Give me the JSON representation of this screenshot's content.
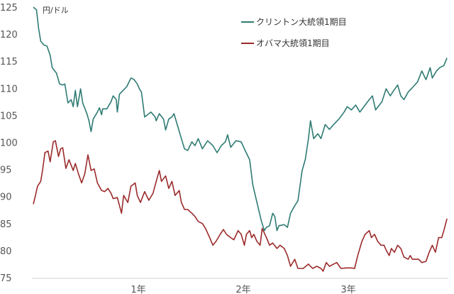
{
  "chart_data": {
    "type": "line",
    "title": "",
    "unit_label": "円/ドル",
    "ylim": [
      75,
      125
    ],
    "yticks": [
      75,
      80,
      85,
      90,
      95,
      100,
      105,
      110,
      115,
      120,
      125
    ],
    "xlim": [
      0,
      3.95
    ],
    "xticks": [
      {
        "value": 1,
        "label": "1年"
      },
      {
        "value": 2,
        "label": "2年"
      },
      {
        "value": 3,
        "label": "3年"
      }
    ],
    "grid": false,
    "legend_placement": "top-center",
    "series": [
      {
        "name": "クリントン大統領1期目",
        "color": "#2e7b73",
        "x": [
          0,
          0.03,
          0.05,
          0.07,
          0.1,
          0.13,
          0.16,
          0.18,
          0.22,
          0.25,
          0.28,
          0.3,
          0.33,
          0.36,
          0.38,
          0.4,
          0.42,
          0.45,
          0.47,
          0.51,
          0.53,
          0.55,
          0.57,
          0.61,
          0.63,
          0.65,
          0.66,
          0.7,
          0.74,
          0.76,
          0.79,
          0.8,
          0.82,
          0.85,
          0.89,
          0.93,
          0.96,
          0.99,
          1.01,
          1.03,
          1.06,
          1.1,
          1.12,
          1.16,
          1.17,
          1.2,
          1.24,
          1.26,
          1.29,
          1.32,
          1.34,
          1.37,
          1.41,
          1.44,
          1.47,
          1.51,
          1.54,
          1.57,
          1.61,
          1.66,
          1.71,
          1.75,
          1.79,
          1.83,
          1.85,
          1.88,
          1.93,
          1.98,
          2.01,
          2.06,
          2.09,
          2.13,
          2.17,
          2.2,
          2.22,
          2.25,
          2.28,
          2.3,
          2.32,
          2.34,
          2.39,
          2.42,
          2.45,
          2.49,
          2.52,
          2.56,
          2.59,
          2.62,
          2.64,
          2.67,
          2.71,
          2.74,
          2.78,
          2.82,
          2.86,
          2.91,
          2.96,
          2.99,
          3.03,
          3.07,
          3.11,
          3.16,
          3.2,
          3.23,
          3.26,
          3.32,
          3.36,
          3.4,
          3.43,
          3.47,
          3.5,
          3.53,
          3.57,
          3.6,
          3.66,
          3.7,
          3.74,
          3.78,
          3.8,
          3.84,
          3.87,
          3.91,
          3.94
        ],
        "y": [
          125.0,
          124.5,
          121.1,
          118.7,
          118.0,
          117.8,
          116.1,
          113.8,
          112.8,
          110.8,
          110.6,
          110.8,
          107.3,
          107.9,
          106.6,
          109.6,
          106.6,
          109.9,
          107.3,
          105.3,
          104.0,
          102.0,
          104.3,
          105.6,
          106.4,
          105.1,
          106.2,
          106.2,
          107.5,
          108.6,
          107.9,
          105.6,
          108.9,
          109.5,
          110.3,
          111.9,
          111.6,
          110.8,
          109.9,
          109.3,
          104.7,
          105.3,
          105.6,
          104.7,
          104.0,
          105.3,
          104.3,
          102.3,
          104.3,
          104.7,
          105.3,
          103.3,
          100.7,
          98.8,
          98.5,
          100.1,
          99.4,
          100.7,
          98.8,
          100.3,
          99.4,
          98.1,
          99.4,
          100.1,
          101.4,
          99.1,
          100.3,
          100.1,
          98.8,
          96.8,
          92.2,
          88.9,
          85.6,
          83.7,
          84.3,
          84.6,
          86.9,
          86.3,
          83.7,
          84.6,
          84.8,
          84.3,
          86.9,
          88.3,
          89.2,
          94.8,
          96.8,
          100.7,
          104.0,
          100.7,
          101.6,
          100.7,
          103.3,
          102.4,
          103.3,
          104.3,
          105.6,
          106.6,
          106.0,
          106.9,
          105.6,
          106.9,
          107.9,
          108.6,
          106.0,
          107.5,
          109.9,
          108.6,
          109.5,
          110.6,
          108.6,
          107.9,
          109.3,
          109.9,
          111.2,
          113.2,
          111.6,
          113.8,
          111.9,
          113.2,
          113.8,
          114.2,
          115.6
        ]
      },
      {
        "name": "オバマ大統領1期目",
        "color": "#9b2a2a",
        "x": [
          0,
          0.02,
          0.04,
          0.07,
          0.09,
          0.11,
          0.14,
          0.16,
          0.19,
          0.21,
          0.24,
          0.26,
          0.28,
          0.31,
          0.34,
          0.38,
          0.4,
          0.43,
          0.46,
          0.49,
          0.52,
          0.55,
          0.58,
          0.61,
          0.65,
          0.68,
          0.71,
          0.74,
          0.76,
          0.8,
          0.84,
          0.86,
          0.9,
          0.93,
          0.97,
          0.99,
          1.02,
          1.06,
          1.1,
          1.14,
          1.17,
          1.2,
          1.22,
          1.26,
          1.29,
          1.32,
          1.35,
          1.39,
          1.41,
          1.44,
          1.47,
          1.51,
          1.54,
          1.57,
          1.61,
          1.64,
          1.68,
          1.71,
          1.74,
          1.78,
          1.81,
          1.84,
          1.88,
          1.91,
          1.95,
          1.98,
          2.01,
          2.03,
          2.06,
          2.08,
          2.1,
          2.13,
          2.16,
          2.18,
          2.22,
          2.25,
          2.28,
          2.32,
          2.35,
          2.39,
          2.42,
          2.45,
          2.49,
          2.52,
          2.57,
          2.62,
          2.66,
          2.7,
          2.74,
          2.76,
          2.79,
          2.82,
          2.86,
          2.89,
          2.93,
          2.98,
          3.03,
          3.06,
          3.09,
          3.13,
          3.16,
          3.2,
          3.22,
          3.25,
          3.28,
          3.31,
          3.34,
          3.36,
          3.39,
          3.41,
          3.44,
          3.47,
          3.5,
          3.53,
          3.57,
          3.59,
          3.61,
          3.67,
          3.7,
          3.74,
          3.77,
          3.8,
          3.83,
          3.86,
          3.89,
          3.91,
          3.94
        ],
        "y": [
          88.6,
          90.2,
          91.9,
          92.8,
          95.1,
          98.1,
          98.4,
          96.4,
          100.1,
          100.3,
          97.4,
          98.8,
          99.0,
          95.2,
          96.8,
          94.8,
          96.1,
          94.2,
          92.5,
          94.2,
          97.7,
          94.8,
          95.1,
          92.5,
          91.1,
          90.9,
          91.5,
          90.6,
          89.6,
          89.8,
          86.9,
          90.2,
          88.9,
          91.9,
          92.5,
          90.2,
          88.9,
          90.9,
          89.3,
          90.6,
          92.8,
          94.8,
          92.8,
          93.8,
          91.5,
          92.8,
          90.2,
          91.1,
          88.9,
          87.6,
          87.6,
          86.9,
          86.3,
          85.4,
          85.0,
          84.1,
          82.4,
          81.0,
          81.7,
          83.0,
          83.9,
          83.0,
          82.4,
          82.0,
          83.7,
          83.0,
          81.0,
          83.0,
          83.7,
          82.4,
          83.0,
          81.7,
          81.0,
          84.1,
          82.4,
          81.0,
          81.4,
          80.4,
          81.0,
          80.4,
          79.1,
          77.1,
          78.4,
          76.7,
          76.7,
          77.5,
          76.7,
          77.1,
          76.7,
          76.2,
          77.8,
          77.1,
          77.5,
          77.8,
          76.7,
          76.8,
          76.8,
          76.7,
          79.1,
          81.7,
          83.0,
          83.7,
          82.4,
          83.0,
          81.7,
          81.0,
          81.0,
          80.1,
          79.1,
          80.4,
          79.7,
          81.0,
          80.4,
          78.8,
          78.4,
          79.1,
          78.4,
          78.4,
          77.8,
          78.0,
          79.7,
          81.0,
          79.7,
          82.4,
          82.4,
          83.7,
          85.9
        ]
      }
    ]
  }
}
